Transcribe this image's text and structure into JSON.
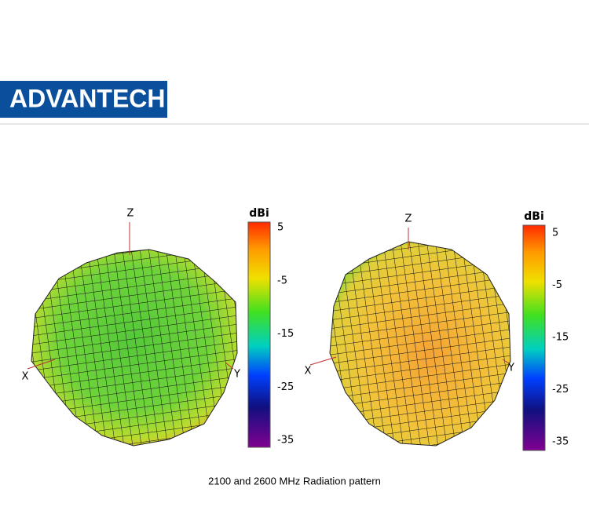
{
  "header": {
    "logo": "ADVANTECH"
  },
  "plots": [
    {
      "axes": {
        "z": "Z",
        "x": "X",
        "y": "Y"
      },
      "colorbar": {
        "title": "dBi",
        "ticks": [
          "5",
          "-5",
          "-15",
          "-25",
          "-35"
        ]
      }
    },
    {
      "axes": {
        "z": "Z",
        "x": "X",
        "y": "Y"
      },
      "colorbar": {
        "title": "dBi",
        "ticks": [
          "5",
          "-5",
          "-15",
          "-25",
          "-35"
        ]
      }
    }
  ],
  "caption": "2100 and 2600 MHz Radiation pattern"
}
